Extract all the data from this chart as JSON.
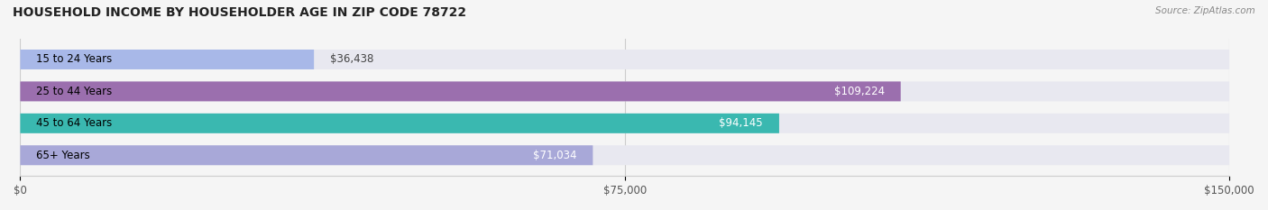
{
  "title": "HOUSEHOLD INCOME BY HOUSEHOLDER AGE IN ZIP CODE 78722",
  "source": "Source: ZipAtlas.com",
  "categories": [
    "15 to 24 Years",
    "25 to 44 Years",
    "45 to 64 Years",
    "65+ Years"
  ],
  "values": [
    36438,
    109224,
    94145,
    71034
  ],
  "bar_colors": [
    "#a8b8e8",
    "#9b6fae",
    "#3ab8b0",
    "#a8a8d8"
  ],
  "bar_background_color": "#e8e8f0",
  "xlim": [
    0,
    150000
  ],
  "xticks": [
    0,
    75000,
    150000
  ],
  "xtick_labels": [
    "$0",
    "$75,000",
    "$150,000"
  ],
  "label_inside_threshold": 50000,
  "figsize": [
    14.06,
    2.33
  ],
  "dpi": 100,
  "background_color": "#f5f5f5"
}
